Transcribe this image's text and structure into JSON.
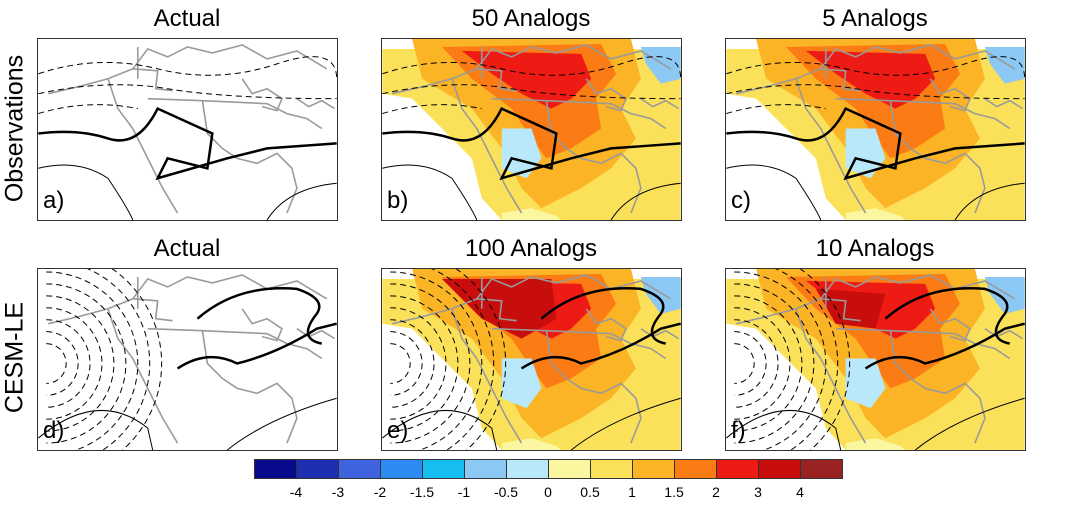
{
  "chart_data": {
    "type": "map",
    "rows": [
      {
        "label": "Observations"
      },
      {
        "label": "CESM-LE"
      }
    ],
    "panels": [
      {
        "letter": "a)",
        "title": "Actual",
        "row": 0,
        "col": 0,
        "shaded": false
      },
      {
        "letter": "b)",
        "title": "50 Analogs",
        "row": 0,
        "col": 1,
        "shaded": true
      },
      {
        "letter": "c)",
        "title": "5 Analogs",
        "row": 0,
        "col": 2,
        "shaded": true
      },
      {
        "letter": "d)",
        "title": "Actual",
        "row": 1,
        "col": 0,
        "shaded": false
      },
      {
        "letter": "e)",
        "title": "100 Analogs",
        "row": 1,
        "col": 1,
        "shaded": true
      },
      {
        "letter": "f)",
        "title": "10 Analogs",
        "row": 1,
        "col": 2,
        "shaded": true
      }
    ],
    "colorbar": {
      "levels": [
        "-4",
        "-3",
        "-2",
        "-1.5",
        "-1",
        "-0.5",
        "0",
        "0.5",
        "1",
        "1.5",
        "2",
        "3",
        "4"
      ],
      "colors": [
        "#0a0a8c",
        "#1f2fb4",
        "#3f63dc",
        "#2b8bf0",
        "#16bdf0",
        "#8cc8f4",
        "#b9e8fa",
        "#fbf7a0",
        "#fbe15a",
        "#fbb426",
        "#fb7c14",
        "#ee1a14",
        "#c80d0d",
        "#9a2222"
      ]
    }
  }
}
